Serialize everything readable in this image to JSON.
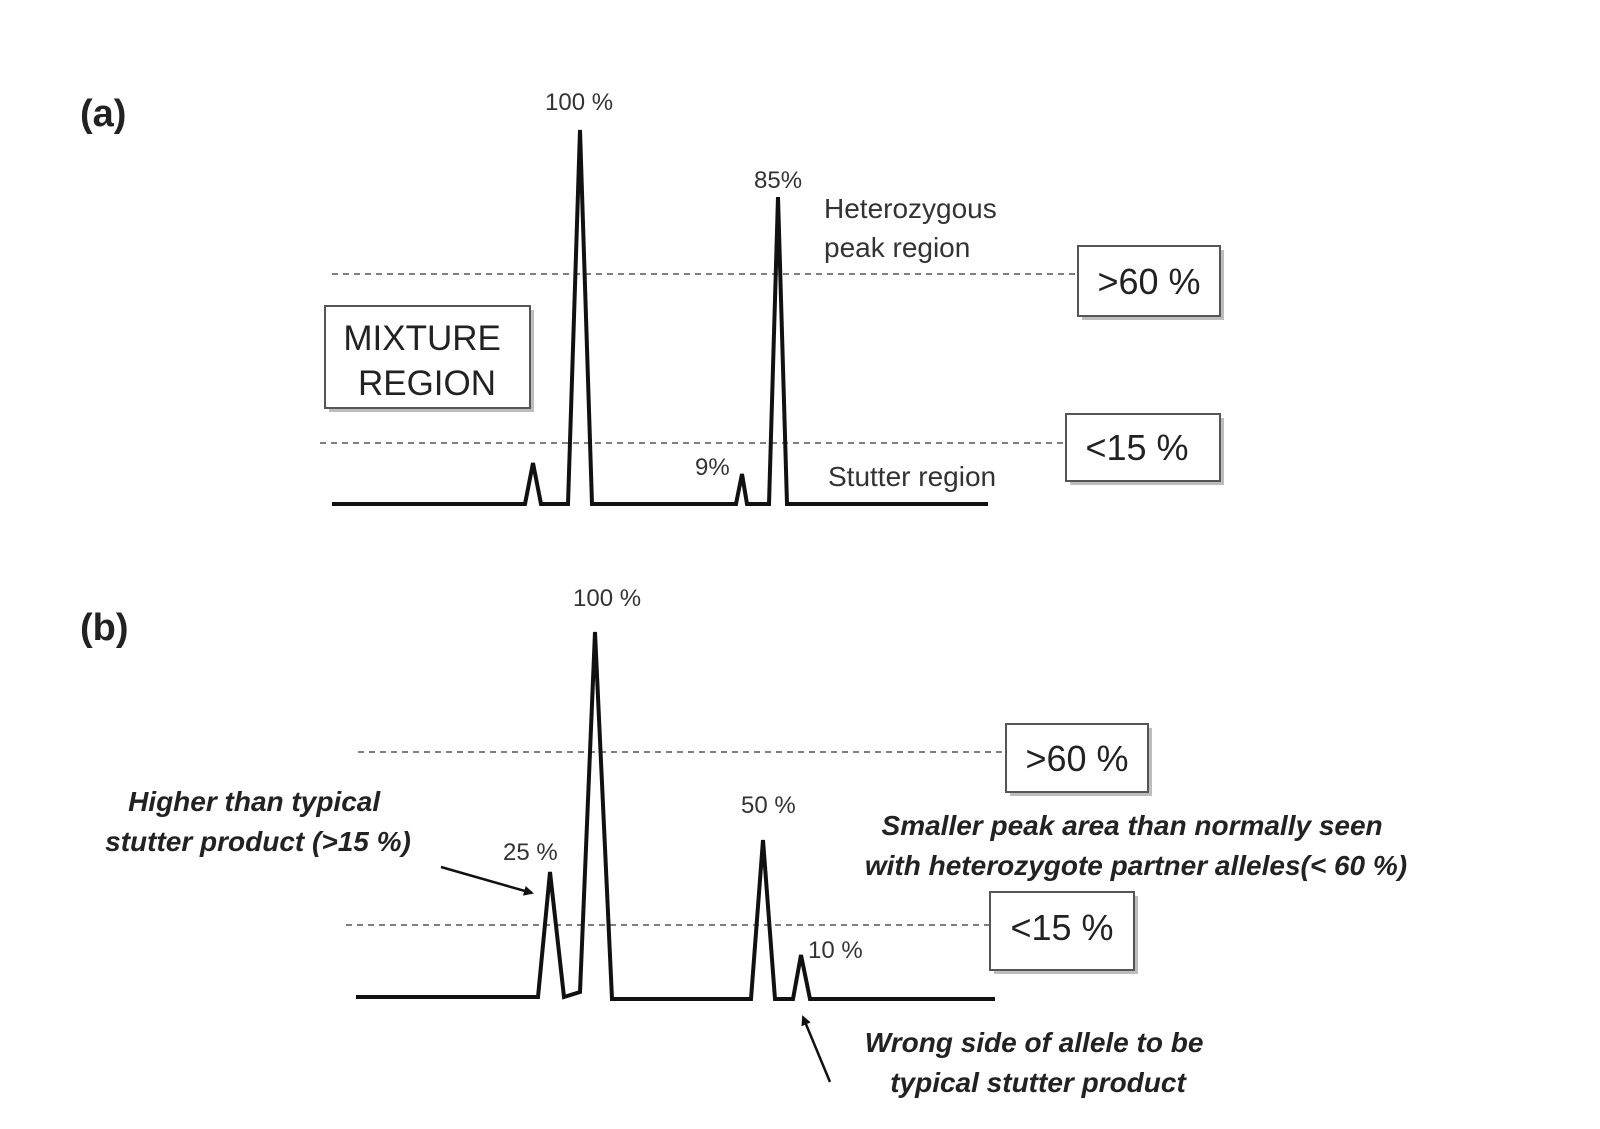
{
  "panel_a": {
    "label": "(a)",
    "peaks": {
      "main": "100 %",
      "partner": "85%",
      "stutter": "9%"
    },
    "heterozygous_region": [
      "Heterozygous",
      "peak region"
    ],
    "stutter_region": "Stutter region",
    "mixture_region": [
      "MIXTURE",
      "REGION"
    ],
    "upper_threshold": ">60 %",
    "lower_threshold": "<15 %"
  },
  "panel_b": {
    "label": "(b)",
    "peaks": {
      "main": "100 %",
      "stutter": "25 %",
      "second": "50 %",
      "small": "10 %"
    },
    "upper_threshold": ">60 %",
    "lower_threshold": "<15 %",
    "notes": {
      "high_stutter": [
        "Higher than typical",
        "stutter product (>15 %)"
      ],
      "small_area": [
        "Smaller peak area than normally seen",
        "with heterozygote partner alleles(< 60 %)"
      ],
      "wrong_side": [
        "Wrong side of allele to be",
        "typical stutter product"
      ]
    }
  }
}
